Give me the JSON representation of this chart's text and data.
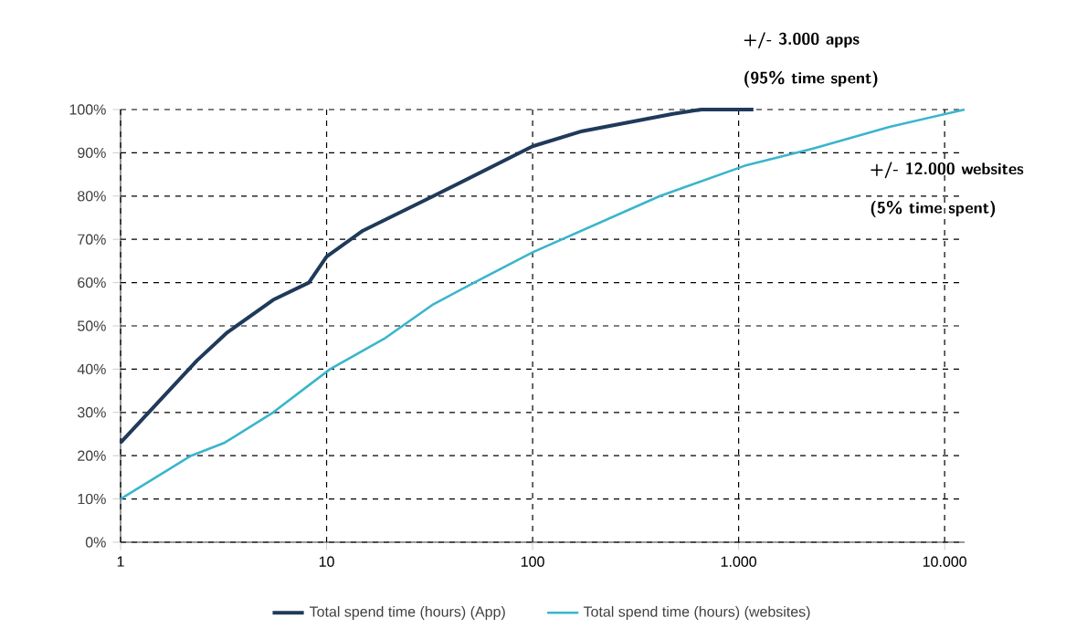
{
  "chart_data": {
    "type": "line",
    "log": "x",
    "grid": true,
    "legend": "bottom",
    "marker": "none",
    "line_style": "solid",
    "xlim": [
      1,
      12500
    ],
    "ylim": [
      0,
      100
    ],
    "xticks": [
      1,
      10,
      100,
      {
        "value": 1000,
        "label": "1.000"
      },
      {
        "value": 10000,
        "label": "10.000"
      }
    ],
    "yticks": [
      {
        "value": 0,
        "label": "0%"
      },
      {
        "value": 10,
        "label": "10%"
      },
      {
        "value": 20,
        "label": "20%"
      },
      {
        "value": 30,
        "label": "30%"
      },
      {
        "value": 40,
        "label": "40%"
      },
      {
        "value": 50,
        "label": "50%"
      },
      {
        "value": 60,
        "label": "60%"
      },
      {
        "value": 70,
        "label": "70%"
      },
      {
        "value": 80,
        "label": "80%"
      },
      {
        "value": 90,
        "label": "90%"
      },
      {
        "value": 100,
        "label": "100%"
      }
    ],
    "series": [
      {
        "name": "Total spend time (hours) (App)",
        "color": "#1f3a5a",
        "x": [
          1,
          2.35,
          3.3,
          5.5,
          8.2,
          10,
          15,
          33,
          100,
          174,
          480,
          660,
          1180
        ],
        "values": [
          23,
          42,
          48.5,
          56,
          60,
          66,
          72,
          80,
          91.5,
          95,
          99,
          100,
          100
        ]
      },
      {
        "name": "Total spend time (hours) (websites)",
        "color": "#3ab5cc",
        "x": [
          1,
          2.2,
          3.2,
          5.5,
          10.4,
          19,
          33,
          52,
          100,
          415,
          1070,
          2300,
          5400,
          12500
        ],
        "values": [
          10,
          20,
          23,
          30,
          40,
          47,
          55,
          60,
          67,
          80,
          87,
          91,
          96,
          100
        ]
      }
    ],
    "annotations": [
      "+/- 3.000 apps",
      "(95% time spent)",
      "+/- 12.000 websites",
      "(5% time spent)"
    ]
  }
}
